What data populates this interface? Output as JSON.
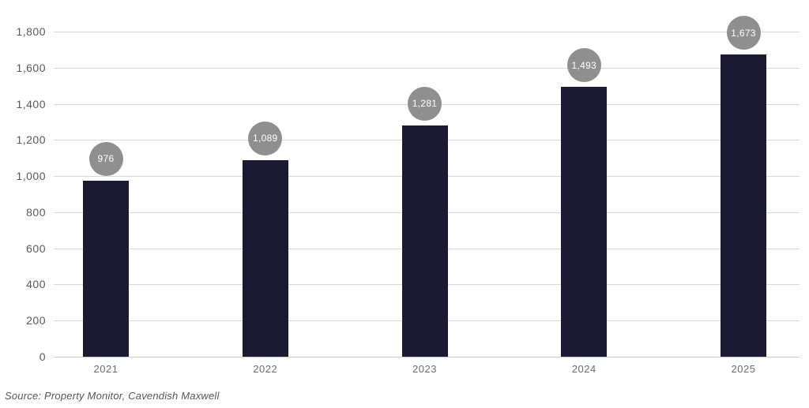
{
  "chart_data": {
    "type": "bar",
    "title": "",
    "xlabel": "",
    "ylabel": "",
    "categories": [
      "2021",
      "2022",
      "2023",
      "2024",
      "2025"
    ],
    "values": [
      976,
      1089,
      1281,
      1493,
      1673
    ],
    "value_labels": [
      "976",
      "1,089",
      "1,281",
      "1,493",
      "1,673"
    ],
    "y_ticks": [
      "0",
      "200",
      "400",
      "600",
      "800",
      "1,000",
      "1,200",
      "1,400",
      "1,600",
      "1,800"
    ],
    "ylim": [
      0,
      1800
    ],
    "grid": "horizontal",
    "legend": "none",
    "bar_color": "#1a1a32",
    "badge_color": "#8f8f8f",
    "badge_text_color": "#ffffff",
    "gridline_color": "#dadada",
    "source": "Source: Property Monitor, Cavendish Maxwell"
  }
}
